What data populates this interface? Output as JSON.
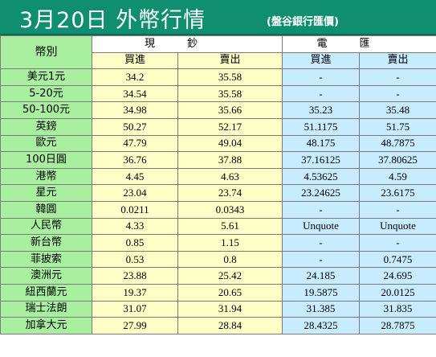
{
  "header": {
    "title": "3月20日 外幣行情",
    "source": "(盤谷銀行匯價)"
  },
  "table": {
    "currency_header": "幣別",
    "cash_header": "現鈔",
    "wire_header": "電匯",
    "buy_label": "買進",
    "sell_label": "賣出",
    "rows": [
      {
        "name": "美元1元",
        "cash_buy": "34.2",
        "cash_sell": "35.58",
        "wire_buy": "-",
        "wire_sell": "-"
      },
      {
        "name": "5-20元",
        "cash_buy": "34.54",
        "cash_sell": "35.58",
        "wire_buy": "-",
        "wire_sell": "-"
      },
      {
        "name": "50-100元",
        "cash_buy": "34.98",
        "cash_sell": "35.66",
        "wire_buy": "35.23",
        "wire_sell": "35.48"
      },
      {
        "name": "英鎊",
        "cash_buy": "50.27",
        "cash_sell": "52.17",
        "wire_buy": "51.1175",
        "wire_sell": "51.75"
      },
      {
        "name": "歐元",
        "cash_buy": "47.79",
        "cash_sell": "49.04",
        "wire_buy": "48.175",
        "wire_sell": "48.7875"
      },
      {
        "name": "100日圓",
        "cash_buy": "36.76",
        "cash_sell": "37.88",
        "wire_buy": "37.16125",
        "wire_sell": "37.80625"
      },
      {
        "name": "港幣",
        "cash_buy": "4.45",
        "cash_sell": "4.63",
        "wire_buy": "4.53625",
        "wire_sell": "4.59"
      },
      {
        "name": "星元",
        "cash_buy": "23.04",
        "cash_sell": "23.74",
        "wire_buy": "23.24625",
        "wire_sell": "23.6175"
      },
      {
        "name": "韓圓",
        "cash_buy": "0.0211",
        "cash_sell": "0.0343",
        "wire_buy": "-",
        "wire_sell": "-"
      },
      {
        "name": "人民幣",
        "cash_buy": "4.33",
        "cash_sell": "5.61",
        "wire_buy": "Unquote",
        "wire_sell": "Unquote"
      },
      {
        "name": "新台幣",
        "cash_buy": "0.85",
        "cash_sell": "1.15",
        "wire_buy": "-",
        "wire_sell": "-"
      },
      {
        "name": "菲披索",
        "cash_buy": "0.53",
        "cash_sell": "0.8",
        "wire_buy": "-",
        "wire_sell": "0.7475"
      },
      {
        "name": "澳洲元",
        "cash_buy": "23.88",
        "cash_sell": "25.42",
        "wire_buy": "24.185",
        "wire_sell": "24.695"
      },
      {
        "name": "紐西蘭元",
        "cash_buy": "19.37",
        "cash_sell": "20.65",
        "wire_buy": "19.5875",
        "wire_sell": "20.0125"
      },
      {
        "name": "瑞士法朗",
        "cash_buy": "31.07",
        "cash_sell": "31.94",
        "wire_buy": "31.385",
        "wire_sell": "31.835"
      },
      {
        "name": "加拿大元",
        "cash_buy": "27.99",
        "cash_sell": "28.84",
        "wire_buy": "28.4325",
        "wire_sell": "28.7875"
      }
    ]
  },
  "colors": {
    "title_bg": "#0f8f6f",
    "name_col_bg": "#a8f0a0",
    "cash_col_bg": "#ffffc8",
    "wire_col_bg": "#c8ecff"
  }
}
